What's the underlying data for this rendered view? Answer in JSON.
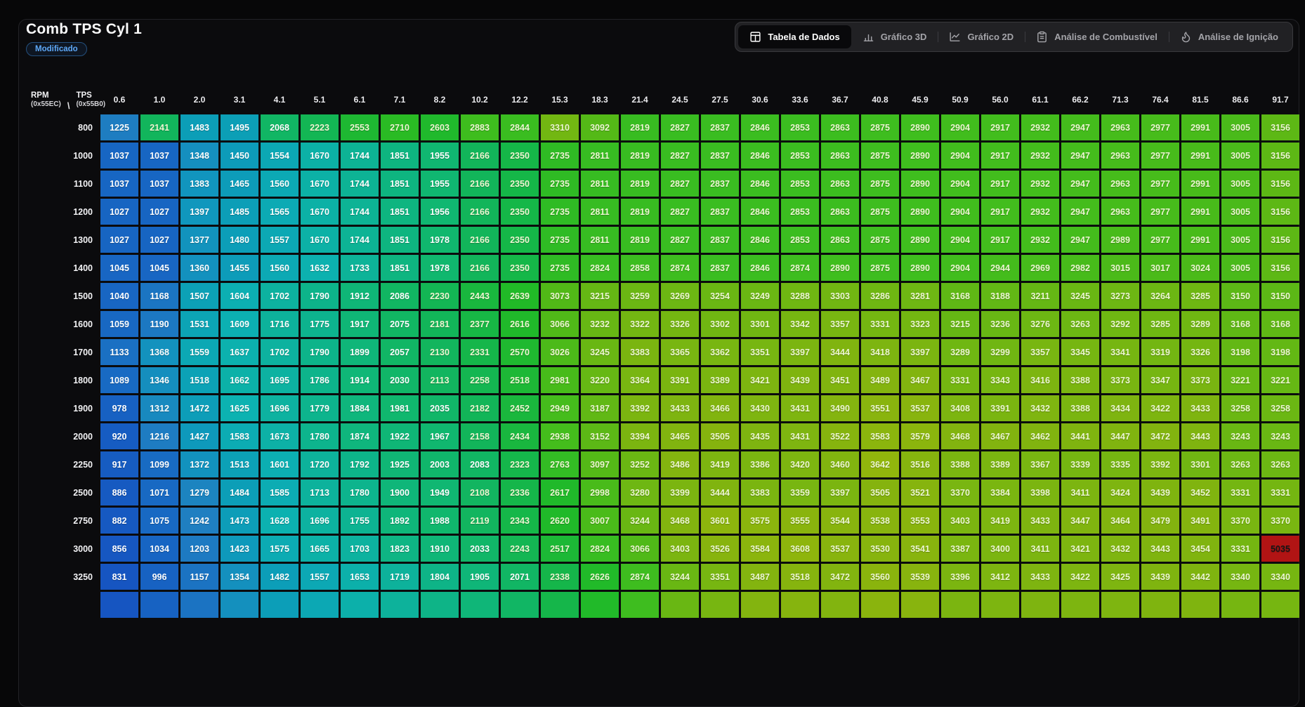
{
  "header": {
    "title": "Comb TPS Cyl 1",
    "badge": "Modificado",
    "tabs": [
      {
        "label": "Tabela de Dados",
        "icon": "table-icon",
        "active": true
      },
      {
        "label": "Gráfico 3D",
        "icon": "bar-chart-icon",
        "active": false
      },
      {
        "label": "Gráfico 2D",
        "icon": "line-chart-icon",
        "active": false
      },
      {
        "label": "Análise de Combustível",
        "icon": "clipboard-icon",
        "active": false
      },
      {
        "label": "Análise de Ignição",
        "icon": "flame-icon",
        "active": false
      }
    ]
  },
  "table": {
    "row_axis": {
      "label": "RPM",
      "address": "(0x55EC)"
    },
    "col_axis": {
      "label": "TPS",
      "address": "(0x55B0)"
    },
    "axis_separator": "\\",
    "columns": [
      "0.6",
      "1.0",
      "2.0",
      "3.1",
      "4.1",
      "5.1",
      "6.1",
      "7.1",
      "8.2",
      "10.2",
      "12.2",
      "15.3",
      "18.3",
      "21.4",
      "24.5",
      "27.5",
      "30.6",
      "33.6",
      "36.7",
      "40.8",
      "45.9",
      "50.9",
      "56.0",
      "61.1",
      "66.2",
      "71.3",
      "76.4",
      "81.5",
      "86.6",
      "91.7"
    ],
    "rows": [
      {
        "rpm": "800",
        "values": [
          1225,
          2141,
          1483,
          1495,
          2068,
          2223,
          2553,
          2710,
          2603,
          2883,
          2844,
          3310,
          3092,
          2819,
          2827,
          2837,
          2846,
          2853,
          2863,
          2875,
          2890,
          2904,
          2917,
          2932,
          2947,
          2963,
          2977,
          2991,
          3005,
          3156
        ]
      },
      {
        "rpm": "1000",
        "values": [
          1037,
          1037,
          1348,
          1450,
          1554,
          1670,
          1744,
          1851,
          1955,
          2166,
          2350,
          2735,
          2811,
          2819,
          2827,
          2837,
          2846,
          2853,
          2863,
          2875,
          2890,
          2904,
          2917,
          2932,
          2947,
          2963,
          2977,
          2991,
          3005,
          3156
        ]
      },
      {
        "rpm": "1100",
        "values": [
          1037,
          1037,
          1383,
          1465,
          1560,
          1670,
          1744,
          1851,
          1955,
          2166,
          2350,
          2735,
          2811,
          2819,
          2827,
          2837,
          2846,
          2853,
          2863,
          2875,
          2890,
          2904,
          2917,
          2932,
          2947,
          2963,
          2977,
          2991,
          3005,
          3156
        ]
      },
      {
        "rpm": "1200",
        "values": [
          1027,
          1027,
          1397,
          1485,
          1565,
          1670,
          1744,
          1851,
          1956,
          2166,
          2350,
          2735,
          2811,
          2819,
          2827,
          2837,
          2846,
          2853,
          2863,
          2875,
          2890,
          2904,
          2917,
          2932,
          2947,
          2963,
          2977,
          2991,
          3005,
          3156
        ]
      },
      {
        "rpm": "1300",
        "values": [
          1027,
          1027,
          1377,
          1480,
          1557,
          1670,
          1744,
          1851,
          1978,
          2166,
          2350,
          2735,
          2811,
          2819,
          2827,
          2837,
          2846,
          2853,
          2863,
          2875,
          2890,
          2904,
          2917,
          2932,
          2947,
          2989,
          2977,
          2991,
          3005,
          3156
        ]
      },
      {
        "rpm": "1400",
        "values": [
          1045,
          1045,
          1360,
          1455,
          1560,
          1632,
          1733,
          1851,
          1978,
          2166,
          2350,
          2735,
          2824,
          2858,
          2874,
          2837,
          2846,
          2874,
          2890,
          2875,
          2890,
          2904,
          2944,
          2969,
          2982,
          3015,
          3017,
          3024,
          3005,
          3156
        ]
      },
      {
        "rpm": "1500",
        "values": [
          1040,
          1168,
          1507,
          1604,
          1702,
          1790,
          1912,
          2086,
          2230,
          2443,
          2639,
          3073,
          3215,
          3259,
          3269,
          3254,
          3249,
          3288,
          3303,
          3286,
          3281,
          3168,
          3188,
          3211,
          3245,
          3273,
          3264,
          3285,
          3150,
          3150
        ]
      },
      {
        "rpm": "1600",
        "values": [
          1059,
          1190,
          1531,
          1609,
          1716,
          1775,
          1917,
          2075,
          2181,
          2377,
          2616,
          3066,
          3232,
          3322,
          3326,
          3302,
          3301,
          3342,
          3357,
          3331,
          3323,
          3215,
          3236,
          3276,
          3263,
          3292,
          3285,
          3289,
          3168,
          3168
        ]
      },
      {
        "rpm": "1700",
        "values": [
          1133,
          1368,
          1559,
          1637,
          1702,
          1790,
          1899,
          2057,
          2130,
          2331,
          2570,
          3026,
          3245,
          3383,
          3365,
          3362,
          3351,
          3397,
          3444,
          3418,
          3397,
          3289,
          3299,
          3357,
          3345,
          3341,
          3319,
          3326,
          3198,
          3198
        ]
      },
      {
        "rpm": "1800",
        "values": [
          1089,
          1346,
          1518,
          1662,
          1695,
          1786,
          1914,
          2030,
          2113,
          2258,
          2518,
          2981,
          3220,
          3364,
          3391,
          3389,
          3421,
          3439,
          3451,
          3489,
          3467,
          3331,
          3343,
          3416,
          3388,
          3373,
          3347,
          3373,
          3221,
          3221
        ]
      },
      {
        "rpm": "1900",
        "values": [
          978,
          1312,
          1472,
          1625,
          1696,
          1779,
          1884,
          1981,
          2035,
          2182,
          2452,
          2949,
          3187,
          3392,
          3433,
          3466,
          3430,
          3431,
          3490,
          3551,
          3537,
          3408,
          3391,
          3432,
          3388,
          3434,
          3422,
          3433,
          3258,
          3258
        ]
      },
      {
        "rpm": "2000",
        "values": [
          920,
          1216,
          1427,
          1583,
          1673,
          1780,
          1874,
          1922,
          1967,
          2158,
          2434,
          2938,
          3152,
          3394,
          3465,
          3505,
          3435,
          3431,
          3522,
          3583,
          3579,
          3468,
          3467,
          3462,
          3441,
          3447,
          3472,
          3443,
          3243,
          3243
        ]
      },
      {
        "rpm": "2250",
        "values": [
          917,
          1099,
          1372,
          1513,
          1601,
          1720,
          1792,
          1925,
          2003,
          2083,
          2323,
          2763,
          3097,
          3252,
          3486,
          3419,
          3386,
          3420,
          3460,
          3642,
          3516,
          3388,
          3389,
          3367,
          3339,
          3335,
          3392,
          3301,
          3263,
          3263
        ]
      },
      {
        "rpm": "2500",
        "values": [
          886,
          1071,
          1279,
          1484,
          1585,
          1713,
          1780,
          1900,
          1949,
          2108,
          2336,
          2617,
          2998,
          3280,
          3399,
          3444,
          3383,
          3359,
          3397,
          3505,
          3521,
          3370,
          3384,
          3398,
          3411,
          3424,
          3439,
          3452,
          3331,
          3331
        ]
      },
      {
        "rpm": "2750",
        "values": [
          882,
          1075,
          1242,
          1473,
          1628,
          1696,
          1755,
          1892,
          1988,
          2119,
          2343,
          2620,
          3007,
          3244,
          3468,
          3601,
          3575,
          3555,
          3544,
          3538,
          3553,
          3403,
          3419,
          3433,
          3447,
          3464,
          3479,
          3491,
          3370,
          3370
        ]
      },
      {
        "rpm": "3000",
        "values": [
          856,
          1034,
          1203,
          1423,
          1575,
          1665,
          1703,
          1823,
          1910,
          2033,
          2243,
          2517,
          2824,
          3066,
          3403,
          3526,
          3584,
          3608,
          3537,
          3530,
          3541,
          3387,
          3400,
          3411,
          3421,
          3432,
          3443,
          3454,
          3331,
          5035
        ]
      },
      {
        "rpm": "3250",
        "values": [
          831,
          996,
          1157,
          1354,
          1482,
          1557,
          1653,
          1719,
          1804,
          1905,
          2071,
          2338,
          2626,
          2874,
          3244,
          3351,
          3487,
          3518,
          3472,
          3560,
          3539,
          3396,
          3412,
          3433,
          3422,
          3425,
          3439,
          3442,
          3340,
          3340
        ]
      }
    ],
    "partial_next_row_visible": true
  },
  "colors": {
    "accent_blue": "#5ea8f7",
    "outlier_bg": "#b11414",
    "outlier_text": "#161616",
    "outlier_threshold": 4000,
    "tint_text": "#edf7d2",
    "tint_from": 2100,
    "heat_anchors": [
      [
        820,
        218,
        80,
        42
      ],
      [
        1100,
        211,
        78,
        43
      ],
      [
        1250,
        204,
        72,
        44
      ],
      [
        1400,
        193,
        85,
        40
      ],
      [
        1500,
        188,
        88,
        38
      ],
      [
        1650,
        178,
        87,
        37
      ],
      [
        1800,
        164,
        86,
        38
      ],
      [
        1950,
        155,
        84,
        39
      ],
      [
        2150,
        147,
        82,
        39
      ],
      [
        2350,
        139,
        79,
        40
      ],
      [
        2550,
        128,
        72,
        42
      ],
      [
        2750,
        115,
        67,
        44
      ],
      [
        2900,
        107,
        73,
        43
      ],
      [
        3050,
        100,
        77,
        41
      ],
      [
        3200,
        91,
        80,
        40
      ],
      [
        3350,
        83,
        83,
        39
      ],
      [
        3500,
        77,
        85,
        38
      ],
      [
        3650,
        73,
        88,
        38
      ]
    ]
  }
}
